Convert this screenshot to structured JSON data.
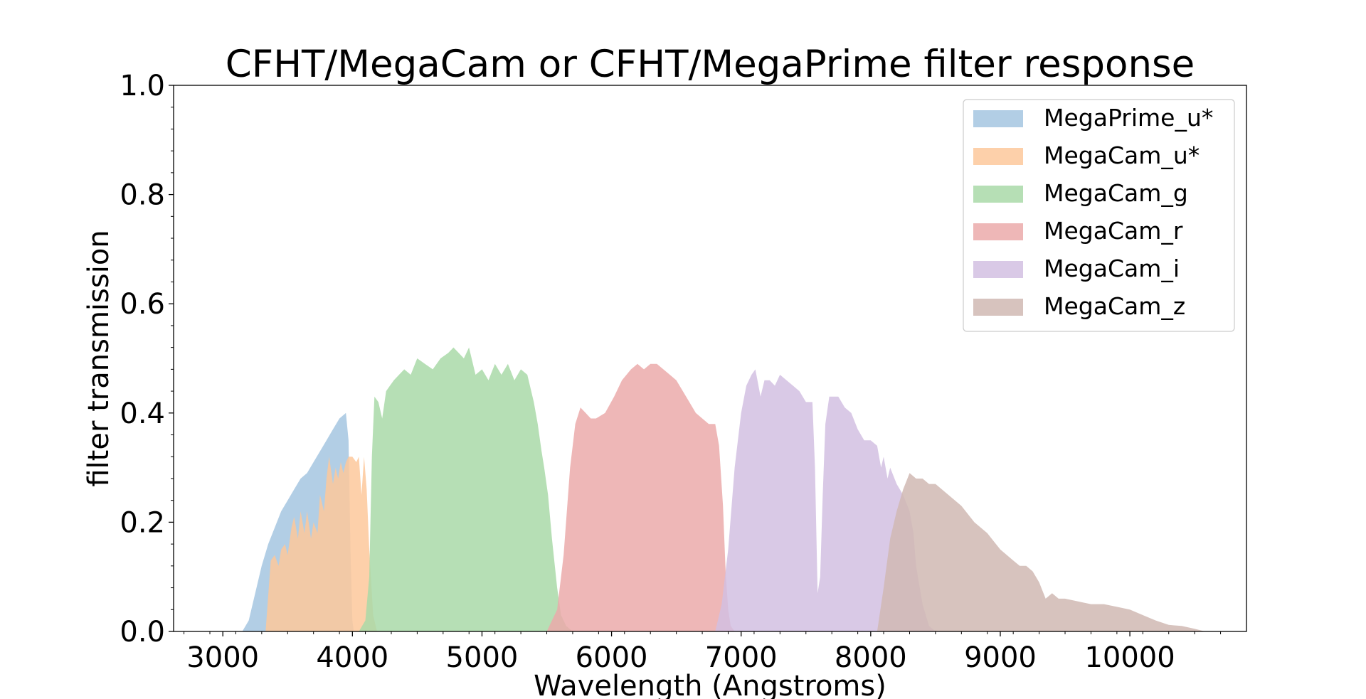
{
  "chart_data": {
    "type": "area",
    "title": "CFHT/MegaCam or CFHT/MegaPrime filter response",
    "xlabel": "Wavelength (Angstroms)",
    "ylabel": "filter transmission",
    "xlim": [
      2620,
      10900
    ],
    "ylim": [
      0.0,
      1.0
    ],
    "xticks": [
      3000,
      4000,
      5000,
      6000,
      7000,
      8000,
      9000,
      10000
    ],
    "yticks": [
      0.0,
      0.2,
      0.4,
      0.6,
      0.8,
      1.0
    ],
    "xtick_labels": [
      "3000",
      "4000",
      "5000",
      "6000",
      "7000",
      "8000",
      "9000",
      "10000"
    ],
    "ytick_labels": [
      "0.0",
      "0.2",
      "0.4",
      "0.6",
      "0.8",
      "1.0"
    ],
    "grid": false,
    "legend_position": "top-right",
    "series": [
      {
        "name": "MegaPrime_u*",
        "color": "#a4c6e0",
        "x": [
          3150,
          3200,
          3250,
          3300,
          3350,
          3400,
          3450,
          3500,
          3550,
          3600,
          3650,
          3700,
          3750,
          3800,
          3850,
          3900,
          3950,
          3970,
          3985,
          4000,
          4010
        ],
        "y": [
          0.0,
          0.02,
          0.07,
          0.12,
          0.16,
          0.19,
          0.22,
          0.24,
          0.26,
          0.28,
          0.29,
          0.31,
          0.33,
          0.35,
          0.37,
          0.39,
          0.4,
          0.35,
          0.15,
          0.02,
          0.0
        ]
      },
      {
        "name": "MegaCam_u*",
        "color": "#fdc89b",
        "x": [
          3330,
          3370,
          3400,
          3430,
          3450,
          3480,
          3500,
          3530,
          3550,
          3580,
          3600,
          3630,
          3650,
          3680,
          3700,
          3730,
          3750,
          3780,
          3800,
          3820,
          3850,
          3870,
          3890,
          3910,
          3930,
          3950,
          3970,
          4000,
          4030,
          4050,
          4070,
          4090,
          4110,
          4130,
          4160,
          4190
        ],
        "y": [
          0.0,
          0.13,
          0.14,
          0.12,
          0.15,
          0.16,
          0.14,
          0.19,
          0.21,
          0.17,
          0.22,
          0.18,
          0.22,
          0.17,
          0.2,
          0.18,
          0.25,
          0.22,
          0.28,
          0.32,
          0.27,
          0.3,
          0.28,
          0.31,
          0.29,
          0.31,
          0.32,
          0.32,
          0.31,
          0.32,
          0.25,
          0.32,
          0.26,
          0.15,
          0.03,
          0.0
        ]
      },
      {
        "name": "MegaCam_g",
        "color": "#a9d9a8",
        "x": [
          4050,
          4100,
          4130,
          4150,
          4170,
          4200,
          4230,
          4260,
          4290,
          4320,
          4360,
          4400,
          4450,
          4500,
          4560,
          4620,
          4680,
          4740,
          4780,
          4820,
          4860,
          4900,
          4950,
          5000,
          5050,
          5100,
          5150,
          5200,
          5250,
          5300,
          5350,
          5400,
          5430,
          5460,
          5480,
          5510,
          5540,
          5580,
          5610,
          5650,
          5700
        ],
        "y": [
          0.0,
          0.02,
          0.1,
          0.32,
          0.43,
          0.42,
          0.39,
          0.44,
          0.45,
          0.46,
          0.47,
          0.48,
          0.47,
          0.5,
          0.49,
          0.48,
          0.5,
          0.51,
          0.52,
          0.51,
          0.5,
          0.52,
          0.47,
          0.48,
          0.46,
          0.49,
          0.47,
          0.49,
          0.46,
          0.48,
          0.47,
          0.42,
          0.38,
          0.33,
          0.3,
          0.25,
          0.17,
          0.08,
          0.03,
          0.01,
          0.0
        ]
      },
      {
        "name": "MegaCam_r",
        "color": "#ebaaaa",
        "x": [
          5500,
          5580,
          5630,
          5680,
          5720,
          5760,
          5800,
          5840,
          5880,
          5950,
          6020,
          6080,
          6150,
          6200,
          6250,
          6300,
          6350,
          6400,
          6450,
          6500,
          6550,
          6600,
          6650,
          6700,
          6750,
          6800,
          6830,
          6860,
          6880,
          6900,
          6920,
          6950,
          7000
        ],
        "y": [
          0.0,
          0.04,
          0.14,
          0.3,
          0.38,
          0.41,
          0.4,
          0.39,
          0.39,
          0.4,
          0.43,
          0.46,
          0.48,
          0.49,
          0.48,
          0.49,
          0.49,
          0.48,
          0.47,
          0.46,
          0.44,
          0.42,
          0.4,
          0.39,
          0.38,
          0.38,
          0.34,
          0.23,
          0.11,
          0.04,
          0.01,
          0.0,
          0.0
        ]
      },
      {
        "name": "MegaCam_i",
        "color": "#d2c0e2",
        "x": [
          6800,
          6850,
          6900,
          6950,
          7000,
          7040,
          7080,
          7110,
          7150,
          7180,
          7220,
          7260,
          7300,
          7350,
          7400,
          7450,
          7500,
          7550,
          7570,
          7590,
          7610,
          7630,
          7650,
          7680,
          7700,
          7750,
          7800,
          7850,
          7900,
          7950,
          8000,
          8050,
          8080,
          8100,
          8130,
          8150,
          8200,
          8250,
          8300,
          8330,
          8350,
          8400,
          8450,
          8500
        ],
        "y": [
          0.0,
          0.05,
          0.15,
          0.3,
          0.4,
          0.45,
          0.47,
          0.48,
          0.43,
          0.46,
          0.46,
          0.45,
          0.47,
          0.46,
          0.45,
          0.44,
          0.42,
          0.42,
          0.3,
          0.07,
          0.1,
          0.25,
          0.38,
          0.43,
          0.43,
          0.43,
          0.41,
          0.4,
          0.37,
          0.35,
          0.35,
          0.34,
          0.3,
          0.32,
          0.28,
          0.3,
          0.27,
          0.25,
          0.22,
          0.18,
          0.12,
          0.05,
          0.01,
          0.0
        ]
      },
      {
        "name": "MegaCam_z",
        "color": "#d0b9b3",
        "x": [
          8050,
          8100,
          8150,
          8200,
          8250,
          8300,
          8350,
          8400,
          8450,
          8500,
          8600,
          8700,
          8800,
          8900,
          9000,
          9050,
          9100,
          9150,
          9200,
          9250,
          9300,
          9350,
          9400,
          9450,
          9500,
          9600,
          9700,
          9800,
          9900,
          10000,
          10100,
          10200,
          10300,
          10400,
          10500,
          10580
        ],
        "y": [
          0.0,
          0.08,
          0.17,
          0.22,
          0.26,
          0.29,
          0.28,
          0.28,
          0.27,
          0.27,
          0.25,
          0.23,
          0.2,
          0.18,
          0.15,
          0.14,
          0.13,
          0.12,
          0.12,
          0.11,
          0.09,
          0.06,
          0.07,
          0.06,
          0.06,
          0.055,
          0.05,
          0.05,
          0.045,
          0.04,
          0.03,
          0.02,
          0.012,
          0.01,
          0.005,
          0.0
        ]
      }
    ]
  }
}
